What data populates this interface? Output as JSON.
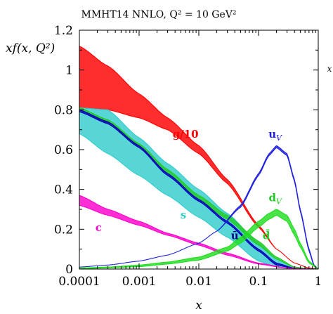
{
  "chart_data": {
    "type": "area",
    "title": "MMHT14 NNLO, Q² = 10 GeV²",
    "xlabel": "x",
    "ylabel": "xf(x, Q²)",
    "right_edge_label": "x",
    "xscale": "log",
    "xlim": [
      0.0001,
      1
    ],
    "ylim": [
      0,
      1.2
    ],
    "xticks": [
      0.0001,
      0.001,
      0.01,
      0.1,
      1
    ],
    "xtick_labels": [
      "0.0001",
      "0.001",
      "0.01",
      "0.1",
      "1"
    ],
    "yticks": [
      0,
      0.2,
      0.4,
      0.6,
      0.8,
      1,
      1.2
    ],
    "ytick_labels": [
      "0",
      "0.2",
      "0.4",
      "0.6",
      "0.8",
      "1",
      "1.2"
    ],
    "grid": false,
    "legend": "none",
    "series": [
      {
        "name": "g/10",
        "color": "#ff0000",
        "x": [
          0.0001,
          0.0003,
          0.001,
          0.003,
          0.01,
          0.03,
          0.1,
          0.2,
          0.4,
          0.7,
          1
        ],
        "upper": [
          1.12,
          1.02,
          0.88,
          0.76,
          0.62,
          0.45,
          0.22,
          0.1,
          0.03,
          0.005,
          0
        ],
        "lower": [
          0.81,
          0.8,
          0.76,
          0.7,
          0.58,
          0.43,
          0.21,
          0.1,
          0.03,
          0.005,
          0
        ]
      },
      {
        "name": "s",
        "color": "#33cccc",
        "x": [
          0.0001,
          0.0003,
          0.001,
          0.003,
          0.01,
          0.03,
          0.1,
          0.2,
          0.4,
          0.7,
          1
        ],
        "upper": [
          0.81,
          0.8,
          0.66,
          0.53,
          0.4,
          0.28,
          0.13,
          0.05,
          0.01,
          0.001,
          0
        ],
        "lower": [
          0.68,
          0.58,
          0.47,
          0.37,
          0.26,
          0.16,
          0.04,
          0.01,
          0.002,
          0.0005,
          0
        ]
      },
      {
        "name": "d̄",
        "color": "#22cc22",
        "x": [
          0.0001,
          0.0003,
          0.001,
          0.003,
          0.01,
          0.03,
          0.1,
          0.2,
          0.4,
          0.7,
          1
        ],
        "upper": [
          0.81,
          0.75,
          0.63,
          0.5,
          0.37,
          0.27,
          0.14,
          0.06,
          0.01,
          0.001,
          0
        ],
        "lower": [
          0.8,
          0.73,
          0.61,
          0.48,
          0.35,
          0.25,
          0.12,
          0.05,
          0.008,
          0.001,
          0
        ]
      },
      {
        "name": "ū",
        "color": "#0000bb",
        "x": [
          0.0001,
          0.0003,
          0.001,
          0.003,
          0.01,
          0.03,
          0.1,
          0.2,
          0.4,
          0.7,
          1
        ],
        "upper": [
          0.8,
          0.74,
          0.62,
          0.48,
          0.35,
          0.24,
          0.1,
          0.03,
          0.004,
          0.0005,
          0
        ],
        "lower": [
          0.79,
          0.73,
          0.61,
          0.47,
          0.34,
          0.23,
          0.09,
          0.02,
          0.003,
          0.0005,
          0
        ]
      },
      {
        "name": "c",
        "color": "#ff00cc",
        "x": [
          0.0001,
          0.0003,
          0.001,
          0.003,
          0.01,
          0.03,
          0.1,
          0.3,
          0.7,
          1
        ],
        "upper": [
          0.37,
          0.3,
          0.24,
          0.18,
          0.13,
          0.08,
          0.03,
          0.005,
          0.001,
          0
        ],
        "lower": [
          0.32,
          0.27,
          0.22,
          0.17,
          0.12,
          0.07,
          0.025,
          0.004,
          0.001,
          0
        ]
      },
      {
        "name": "u_V",
        "color": "#2222dd",
        "x": [
          0.0001,
          0.0003,
          0.001,
          0.003,
          0.01,
          0.02,
          0.05,
          0.1,
          0.15,
          0.2,
          0.3,
          0.4,
          0.5,
          0.7,
          0.85,
          1
        ],
        "upper": [
          0.01,
          0.02,
          0.04,
          0.07,
          0.13,
          0.19,
          0.32,
          0.48,
          0.58,
          0.62,
          0.58,
          0.45,
          0.3,
          0.1,
          0.02,
          0
        ],
        "lower": [
          0.01,
          0.02,
          0.04,
          0.07,
          0.13,
          0.19,
          0.31,
          0.47,
          0.57,
          0.61,
          0.57,
          0.44,
          0.29,
          0.09,
          0.015,
          0
        ]
      },
      {
        "name": "d_V",
        "color": "#22dd22",
        "x": [
          0.0001,
          0.0003,
          0.001,
          0.003,
          0.01,
          0.03,
          0.05,
          0.1,
          0.15,
          0.2,
          0.3,
          0.4,
          0.5,
          0.7,
          1
        ],
        "upper": [
          0.005,
          0.01,
          0.02,
          0.035,
          0.06,
          0.11,
          0.16,
          0.24,
          0.28,
          0.3,
          0.27,
          0.2,
          0.13,
          0.04,
          0
        ],
        "lower": [
          0.002,
          0.006,
          0.012,
          0.025,
          0.045,
          0.09,
          0.13,
          0.21,
          0.25,
          0.27,
          0.24,
          0.17,
          0.11,
          0.03,
          0
        ]
      }
    ],
    "annotations": [
      {
        "text": "g/10",
        "x": 0.006,
        "y": 0.66,
        "color": "#ff0000"
      },
      {
        "text": "u",
        "sub": "V",
        "x": 0.19,
        "y": 0.66,
        "color": "#2222dd"
      },
      {
        "text": "d",
        "sub": "V",
        "x": 0.19,
        "y": 0.34,
        "color": "#22cc22"
      },
      {
        "text": "s",
        "x": 0.0055,
        "y": 0.255,
        "color": "#33cccc"
      },
      {
        "text": "d̄",
        "x": 0.135,
        "y": 0.15,
        "color": "#22cc22"
      },
      {
        "text": "ū",
        "x": 0.04,
        "y": 0.15,
        "color": "#000088"
      },
      {
        "text": "c",
        "x": 0.00021,
        "y": 0.19,
        "color": "#ff00cc"
      }
    ]
  }
}
